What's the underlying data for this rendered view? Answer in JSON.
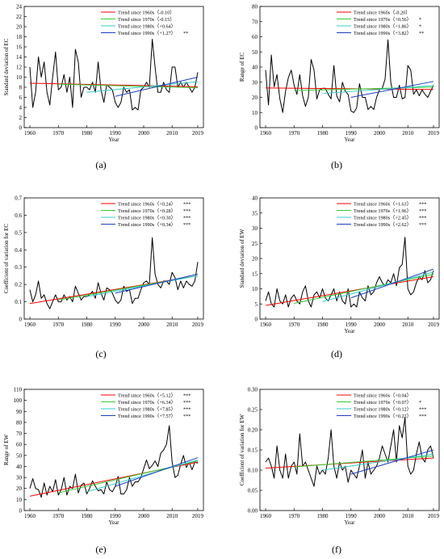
{
  "chart_data": [
    {
      "panel": "(a)",
      "type": "line",
      "xlabel": "Year",
      "ylabel": "Standard deviation of EC",
      "xlim": [
        1958,
        2021
      ],
      "ylim": [
        0,
        24
      ],
      "xticks": [
        1960,
        1970,
        1980,
        1990,
        2000,
        2010,
        2019
      ],
      "yticks": [
        0,
        2,
        4,
        6,
        8,
        10,
        12,
        14,
        16,
        18,
        20,
        22,
        24
      ],
      "x": [
        1960,
        1961,
        1962,
        1963,
        1964,
        1965,
        1966,
        1967,
        1968,
        1969,
        1970,
        1971,
        1972,
        1973,
        1974,
        1975,
        1976,
        1977,
        1978,
        1979,
        1980,
        1981,
        1982,
        1983,
        1984,
        1985,
        1986,
        1987,
        1988,
        1989,
        1990,
        1991,
        1992,
        1993,
        1994,
        1995,
        1996,
        1997,
        1998,
        1999,
        2000,
        2001,
        2002,
        2003,
        2004,
        2005,
        2006,
        2007,
        2008,
        2009,
        2010,
        2011,
        2012,
        2013,
        2014,
        2015,
        2016,
        2017,
        2018,
        2019
      ],
      "series": [
        {
          "values": [
            12,
            4,
            7,
            14,
            10,
            13,
            7,
            4.5,
            10,
            15,
            7.5,
            8,
            10.5,
            7,
            10,
            4,
            15.5,
            13,
            6,
            8,
            8,
            7.5,
            9,
            7,
            13,
            7.5,
            5,
            8.5,
            8,
            7.5,
            5,
            4,
            5,
            8,
            7,
            7.5,
            3.5,
            4,
            3.5,
            7.5,
            8,
            9,
            8,
            17.5,
            12,
            7,
            7,
            9,
            7.5,
            7,
            12,
            12,
            8,
            9,
            8,
            9,
            8,
            7,
            8,
            11
          ]
        }
      ],
      "legend": [
        {
          "label": "Trend since 1960s（-0.10）",
          "sig": ""
        },
        {
          "label": "Trend since 1970s（-0.15）",
          "sig": ""
        },
        {
          "label": "Trend since 1980s（+0.64）",
          "sig": ""
        },
        {
          "label": "Trend since 1990s（+1.27）",
          "sig": "**"
        }
      ],
      "trends": [
        [
          1960,
          8.8,
          2019,
          8.1
        ],
        [
          1970,
          8.6,
          2019,
          7.9
        ],
        [
          1980,
          7.0,
          2019,
          9.1
        ],
        [
          1990,
          6.2,
          2019,
          10.0
        ]
      ],
      "legend_position": "top-right"
    },
    {
      "panel": "(b)",
      "type": "line",
      "xlabel": "Year",
      "ylabel": "Range of EC",
      "xlim": [
        1958,
        2021
      ],
      "ylim": [
        0,
        80
      ],
      "xticks": [
        1960,
        1970,
        1980,
        1990,
        2000,
        2010,
        2019
      ],
      "yticks": [
        0,
        10,
        20,
        30,
        40,
        50,
        60,
        70,
        80
      ],
      "x": [
        1960,
        1961,
        1962,
        1963,
        1964,
        1965,
        1966,
        1967,
        1968,
        1969,
        1970,
        1971,
        1972,
        1973,
        1974,
        1975,
        1976,
        1977,
        1978,
        1979,
        1980,
        1981,
        1982,
        1983,
        1984,
        1985,
        1986,
        1987,
        1988,
        1989,
        1990,
        1991,
        1992,
        1993,
        1994,
        1995,
        1996,
        1997,
        1998,
        1999,
        2000,
        2001,
        2002,
        2003,
        2004,
        2005,
        2006,
        2007,
        2008,
        2009,
        2010,
        2011,
        2012,
        2013,
        2014,
        2015,
        2016,
        2017,
        2018,
        2019
      ],
      "series": [
        {
          "values": [
            38,
            15,
            48,
            27,
            35,
            19,
            10,
            24,
            33,
            38,
            28,
            22,
            35,
            21,
            14,
            20,
            45,
            38,
            19,
            25,
            26,
            26,
            22,
            19,
            41,
            21,
            17,
            30,
            24,
            22,
            11,
            10,
            13,
            29,
            20,
            20,
            12,
            14,
            12,
            20,
            25,
            26,
            32,
            58,
            30,
            20,
            20,
            28,
            19,
            20,
            41,
            38,
            22,
            25,
            21,
            25,
            22,
            20,
            24,
            28
          ]
        }
      ],
      "legend": [
        {
          "label": "Trend since 1960s（-0.20）",
          "sig": ""
        },
        {
          "label": "Trend since 1970s（+0.56）",
          "sig": "*"
        },
        {
          "label": "Trend since 1980s（+1.86）",
          "sig": "*"
        },
        {
          "label": "Trend since 1990s（+3.82）",
          "sig": "**"
        }
      ],
      "trends": [
        [
          1960,
          26.2,
          2019,
          25.2
        ],
        [
          1970,
          24.5,
          2019,
          26.8
        ],
        [
          1980,
          22.5,
          2019,
          27.8
        ],
        [
          1990,
          20.0,
          2019,
          30.5
        ]
      ],
      "legend_position": "top-right"
    },
    {
      "panel": "(c)",
      "type": "line",
      "xlabel": "",
      "ylabel": "Coefficient of variation for EC",
      "xlim": [
        1958,
        2021
      ],
      "ylim": [
        0,
        0.7
      ],
      "xticks": [
        1960,
        1970,
        1980,
        1990,
        2000,
        2010,
        2019
      ],
      "yticks": [
        0,
        0.1,
        0.2,
        0.3,
        0.4,
        0.5,
        0.6,
        0.7
      ],
      "x": [
        1960,
        1961,
        1962,
        1963,
        1964,
        1965,
        1966,
        1967,
        1968,
        1969,
        1970,
        1971,
        1972,
        1973,
        1974,
        1975,
        1976,
        1977,
        1978,
        1979,
        1980,
        1981,
        1982,
        1983,
        1984,
        1985,
        1986,
        1987,
        1988,
        1989,
        1990,
        1991,
        1992,
        1993,
        1994,
        1995,
        1996,
        1997,
        1998,
        1999,
        2000,
        2001,
        2002,
        2003,
        2004,
        2005,
        2006,
        2007,
        2008,
        2009,
        2010,
        2011,
        2012,
        2013,
        2014,
        2015,
        2016,
        2017,
        2018,
        2019
      ],
      "series": [
        {
          "values": [
            0.17,
            0.1,
            0.14,
            0.22,
            0.12,
            0.14,
            0.09,
            0.06,
            0.1,
            0.14,
            0.1,
            0.1,
            0.14,
            0.11,
            0.13,
            0.1,
            0.19,
            0.15,
            0.11,
            0.13,
            0.13,
            0.14,
            0.16,
            0.12,
            0.21,
            0.15,
            0.11,
            0.18,
            0.17,
            0.15,
            0.11,
            0.09,
            0.11,
            0.19,
            0.16,
            0.17,
            0.09,
            0.12,
            0.12,
            0.17,
            0.21,
            0.22,
            0.2,
            0.47,
            0.26,
            0.2,
            0.18,
            0.22,
            0.22,
            0.2,
            0.27,
            0.24,
            0.17,
            0.22,
            0.18,
            0.22,
            0.2,
            0.19,
            0.22,
            0.33
          ]
        }
      ],
      "legend": [
        {
          "label": "Trend since 1960s（+0.24）",
          "sig": "***"
        },
        {
          "label": "Trend since 1970s（+0.28）",
          "sig": "***"
        },
        {
          "label": "Trend since 1980s（+0.30）",
          "sig": "***"
        },
        {
          "label": "Trend since 1990s（+0.34）",
          "sig": "***"
        }
      ],
      "trends": [
        [
          1960,
          0.09,
          2019,
          0.25
        ],
        [
          1970,
          0.11,
          2019,
          0.25
        ],
        [
          1980,
          0.13,
          2019,
          0.25
        ],
        [
          1990,
          0.15,
          2019,
          0.26
        ]
      ],
      "legend_position": "top-right"
    },
    {
      "panel": "(d)",
      "type": "line",
      "xlabel": "Year",
      "ylabel": "Standard deviation of EW",
      "xlim": [
        1958,
        2021
      ],
      "ylim": [
        0,
        40
      ],
      "xticks": [
        1960,
        1970,
        1980,
        1990,
        2000,
        2010,
        2019
      ],
      "yticks": [
        0,
        5,
        10,
        15,
        20,
        25,
        30,
        35,
        40
      ],
      "x": [
        1960,
        1961,
        1962,
        1963,
        1964,
        1965,
        1966,
        1967,
        1968,
        1969,
        1970,
        1971,
        1972,
        1973,
        1974,
        1975,
        1976,
        1977,
        1978,
        1979,
        1980,
        1981,
        1982,
        1983,
        1984,
        1985,
        1986,
        1987,
        1988,
        1989,
        1990,
        1991,
        1992,
        1993,
        1994,
        1995,
        1996,
        1997,
        1998,
        1999,
        2000,
        2001,
        2002,
        2003,
        2004,
        2005,
        2006,
        2007,
        2008,
        2009,
        2010,
        2011,
        2012,
        2013,
        2014,
        2015,
        2016,
        2017,
        2018,
        2019
      ],
      "series": [
        {
          "values": [
            6,
            9,
            5,
            4,
            10,
            6,
            5,
            8,
            4,
            7,
            8,
            6,
            5,
            9,
            11,
            6,
            4,
            8,
            9,
            7,
            10,
            7,
            6,
            8,
            10,
            6,
            9,
            6,
            5,
            10,
            4,
            5,
            4,
            9,
            7,
            6,
            11,
            8,
            9,
            12,
            14,
            12,
            11,
            13,
            12,
            15,
            11,
            17,
            18,
            27,
            10,
            8,
            9,
            12,
            14,
            13,
            16,
            12,
            13,
            16
          ]
        }
      ],
      "legend": [
        {
          "label": "Trend since 1960s（+1.63）",
          "sig": "***"
        },
        {
          "label": "Trend since 1970s（+1.96）",
          "sig": "***"
        },
        {
          "label": "Trend since 1980s（+2.45）",
          "sig": "***"
        },
        {
          "label": "Trend since 1990s（+2.62）",
          "sig": "***"
        }
      ],
      "trends": [
        [
          1960,
          4.5,
          2019,
          14.0
        ],
        [
          1970,
          5.2,
          2019,
          14.8
        ],
        [
          1980,
          5.8,
          2019,
          15.5
        ],
        [
          1990,
          7.0,
          2019,
          16.5
        ]
      ],
      "legend_position": "top-right"
    },
    {
      "panel": "(e)",
      "type": "line",
      "xlabel": "Year",
      "ylabel": "Range of EW",
      "xlim": [
        1958,
        2021
      ],
      "ylim": [
        0,
        110
      ],
      "xticks": [
        1960,
        1970,
        1980,
        1990,
        2000,
        2010,
        2019
      ],
      "yticks": [
        0,
        10,
        20,
        30,
        40,
        50,
        60,
        70,
        80,
        90,
        100,
        110
      ],
      "x": [
        1960,
        1961,
        1962,
        1963,
        1964,
        1965,
        1966,
        1967,
        1968,
        1969,
        1970,
        1971,
        1972,
        1973,
        1974,
        1975,
        1976,
        1977,
        1978,
        1979,
        1980,
        1981,
        1982,
        1983,
        1984,
        1985,
        1986,
        1987,
        1988,
        1989,
        1990,
        1991,
        1992,
        1993,
        1994,
        1995,
        1996,
        1997,
        1998,
        1999,
        2000,
        2001,
        2002,
        2003,
        2004,
        2005,
        2006,
        2007,
        2008,
        2009,
        2010,
        2011,
        2012,
        2013,
        2014,
        2015,
        2016,
        2017,
        2018,
        2019
      ],
      "series": [
        {
          "values": [
            20,
            29,
            20,
            19,
            12,
            25,
            14,
            22,
            17,
            28,
            14,
            19,
            30,
            14,
            22,
            20,
            33,
            16,
            23,
            25,
            15,
            20,
            27,
            22,
            18,
            19,
            15,
            26,
            19,
            17,
            22,
            31,
            15,
            15,
            19,
            30,
            22,
            26,
            26,
            30,
            38,
            46,
            38,
            41,
            45,
            40,
            52,
            55,
            60,
            77,
            44,
            30,
            32,
            42,
            50,
            39,
            44,
            37,
            44,
            43
          ]
        }
      ],
      "legend": [
        {
          "label": "Trend since 1960s（+5.12）",
          "sig": "***"
        },
        {
          "label": "Trend since 1970s（+6.34）",
          "sig": "***"
        },
        {
          "label": "Trend since 1980s（+7.85）",
          "sig": "***"
        },
        {
          "label": "Trend since 1990s（+7.57）",
          "sig": "***"
        }
      ],
      "trends": [
        [
          1960,
          13,
          2019,
          44
        ],
        [
          1970,
          16,
          2019,
          45
        ],
        [
          1980,
          17,
          2019,
          46
        ],
        [
          1990,
          22,
          2019,
          48
        ]
      ],
      "legend_position": "top-right"
    },
    {
      "panel": "(f)",
      "type": "line",
      "xlabel": "Year",
      "ylabel": "Coefficient of variation for EW",
      "xlim": [
        1958,
        2021
      ],
      "ylim": [
        0,
        0.3
      ],
      "xticks": [
        1960,
        1970,
        1980,
        1990,
        2000,
        2010,
        2019
      ],
      "yticks": [
        0.0,
        0.05,
        0.1,
        0.15,
        0.2,
        0.25,
        0.3
      ],
      "ytick_format": "2dp",
      "x": [
        1960,
        1961,
        1962,
        1963,
        1964,
        1965,
        1966,
        1967,
        1968,
        1969,
        1970,
        1971,
        1972,
        1973,
        1974,
        1975,
        1976,
        1977,
        1978,
        1979,
        1980,
        1981,
        1982,
        1983,
        1984,
        1985,
        1986,
        1987,
        1988,
        1989,
        1990,
        1991,
        1992,
        1993,
        1994,
        1995,
        1996,
        1997,
        1998,
        1999,
        2000,
        2001,
        2002,
        2003,
        2004,
        2005,
        2006,
        2007,
        2008,
        2009,
        2010,
        2011,
        2012,
        2013,
        2014,
        2015,
        2016,
        2017,
        2018,
        2019
      ],
      "series": [
        {
          "values": [
            0.12,
            0.13,
            0.11,
            0.08,
            0.16,
            0.1,
            0.08,
            0.14,
            0.08,
            0.11,
            0.12,
            0.09,
            0.19,
            0.11,
            0.12,
            0.1,
            0.08,
            0.06,
            0.11,
            0.09,
            0.1,
            0.09,
            0.13,
            0.2,
            0.11,
            0.08,
            0.12,
            0.1,
            0.11,
            0.07,
            0.1,
            0.09,
            0.08,
            0.11,
            0.15,
            0.08,
            0.12,
            0.09,
            0.1,
            0.11,
            0.13,
            0.16,
            0.14,
            0.12,
            0.16,
            0.2,
            0.12,
            0.21,
            0.18,
            0.23,
            0.11,
            0.09,
            0.1,
            0.14,
            0.17,
            0.13,
            0.12,
            0.15,
            0.16,
            0.13
          ]
        }
      ],
      "legend": [
        {
          "label": "Trend since 1960s（+0.04）",
          "sig": ""
        },
        {
          "label": "Trend since 1970s（+0.07）",
          "sig": "*"
        },
        {
          "label": "Trend since 1980s（+0.12）",
          "sig": "***"
        },
        {
          "label": "Trend since 1990s（+0.22）",
          "sig": "***"
        }
      ],
      "trends": [
        [
          1960,
          0.105,
          2019,
          0.13
        ],
        [
          1970,
          0.108,
          2019,
          0.135
        ],
        [
          1980,
          0.1,
          2019,
          0.14
        ],
        [
          1990,
          0.09,
          2019,
          0.15
        ]
      ],
      "legend_position": "top-right"
    }
  ],
  "panel_labels": [
    "(a)",
    "(b)",
    "(c)",
    "(d)",
    "(e)",
    "(f)"
  ],
  "colors": {
    "data": "#000000",
    "trend_1960s": "#ff0000",
    "trend_1970s": "#33cc33",
    "trend_1980s": "#33cccc",
    "trend_1990s": "#1f3fbf"
  }
}
